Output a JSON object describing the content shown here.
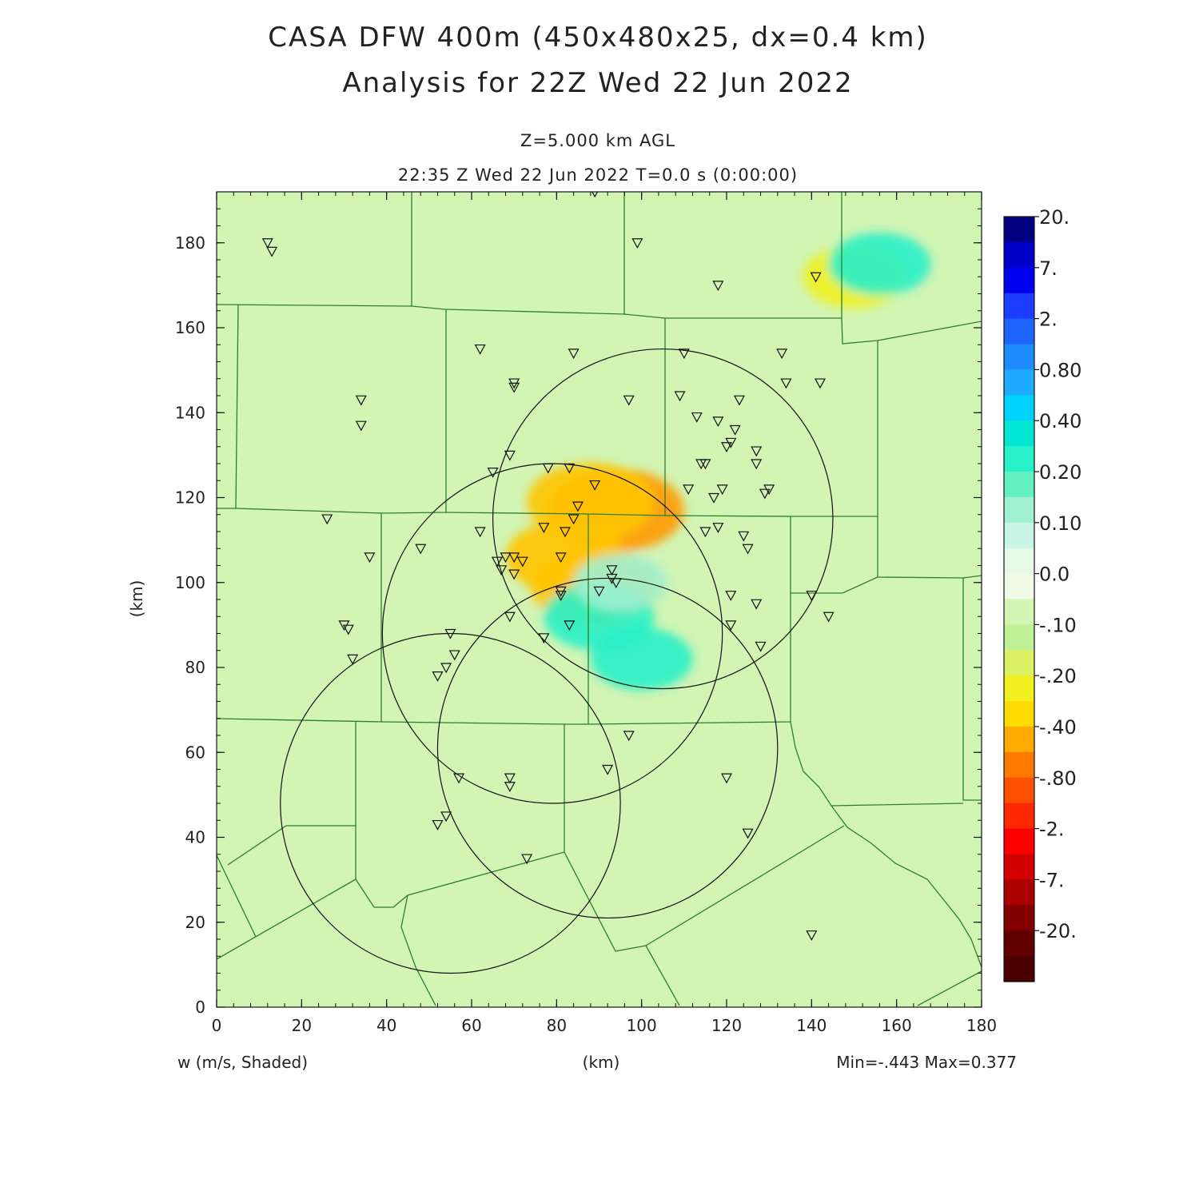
{
  "title_line1": "CASA DFW 400m (450x480x25, dx=0.4 km)",
  "title_line2": "Analysis for 22Z Wed 22 Jun 2022",
  "subtitle_line1": "Z=5.000 km AGL",
  "subtitle_line2": "22:35 Z Wed 22 Jun 2022    T=0.0 s (0:00:00)",
  "footer_left": "w (m/s, Shaded)",
  "footer_center": "(km)",
  "footer_right": "Min=-.443 Max=0.377",
  "colorbar_labels": [
    "20.",
    "7.",
    "2.",
    "0.80",
    "0.40",
    "0.20",
    "0.10",
    "0.0",
    "-.10",
    "-.20",
    "-.40",
    "-.80",
    "-2.",
    "-7.",
    "-20."
  ],
  "colorbar_colors": [
    "#000080",
    "#0000c8",
    "#0000f0",
    "#1c3cff",
    "#1e64ff",
    "#1e8cff",
    "#1eaaff",
    "#00d2ff",
    "#00e6d2",
    "#28f0c8",
    "#64f0c0",
    "#a0f0d2",
    "#c8f5e6",
    "#e6fae6",
    "#f0fae6",
    "#d2f5b4",
    "#bef096",
    "#dcf064",
    "#f0f01e",
    "#ffdc00",
    "#ffaa00",
    "#ff7800",
    "#ff5000",
    "#ff2800",
    "#ff0000",
    "#d20000",
    "#aa0000",
    "#820000",
    "#600000",
    "#4a0000"
  ],
  "background_color": "#d2f5b4",
  "chart_data": {
    "type": "heatmap",
    "variable": "w (m/s, Shaded)",
    "level": "Z=5.000 km AGL",
    "xlim": [
      0,
      180
    ],
    "ylim": [
      0,
      192
    ],
    "x_ticks": [
      0,
      20,
      40,
      60,
      80,
      100,
      120,
      140,
      160,
      180
    ],
    "y_ticks": [
      0,
      20,
      40,
      60,
      80,
      100,
      120,
      140,
      160,
      180
    ],
    "xlabel": "(km)",
    "ylabel": "(km)",
    "min": -0.443,
    "max": 0.377,
    "radar_rings": [
      {
        "cx": 105,
        "cy": 115,
        "r": 40
      },
      {
        "cx": 79,
        "cy": 88,
        "r": 40
      },
      {
        "cx": 92,
        "cy": 61,
        "r": 40
      },
      {
        "cx": 55,
        "cy": 48,
        "r": 40
      }
    ],
    "features": [
      {
        "type": "updraft",
        "x": 94,
        "y": 117,
        "value": -0.4
      },
      {
        "type": "updraft",
        "x": 88,
        "y": 119,
        "value": -0.35
      },
      {
        "type": "updraft",
        "x": 82,
        "y": 106,
        "value": -0.3
      },
      {
        "type": "updraft",
        "x": 89,
        "y": 99,
        "value": -0.35
      },
      {
        "type": "updraft",
        "x": 150,
        "y": 172,
        "value": -0.2
      },
      {
        "type": "downdraft",
        "x": 156,
        "y": 175,
        "value": 0.2
      },
      {
        "type": "downdraft",
        "x": 90,
        "y": 92,
        "value": 0.25
      },
      {
        "type": "downdraft",
        "x": 100,
        "y": 82,
        "value": 0.2
      },
      {
        "type": "downdraft",
        "x": 95,
        "y": 100,
        "value": 0.15
      }
    ],
    "stations": [
      [
        12,
        180
      ],
      [
        13,
        178
      ],
      [
        99,
        180
      ],
      [
        141,
        172
      ],
      [
        118,
        170
      ],
      [
        62,
        155
      ],
      [
        84,
        154
      ],
      [
        110,
        154
      ],
      [
        133,
        154
      ],
      [
        70,
        147
      ],
      [
        70,
        146
      ],
      [
        134,
        147
      ],
      [
        142,
        147
      ],
      [
        34,
        143
      ],
      [
        97,
        143
      ],
      [
        109,
        144
      ],
      [
        123,
        143
      ],
      [
        34,
        137
      ],
      [
        113,
        139
      ],
      [
        118,
        138
      ],
      [
        122,
        136
      ],
      [
        121,
        133
      ],
      [
        120,
        132
      ],
      [
        127,
        131
      ],
      [
        127,
        128
      ],
      [
        69,
        130
      ],
      [
        65,
        126
      ],
      [
        78,
        127
      ],
      [
        83,
        127
      ],
      [
        114,
        128
      ],
      [
        115,
        128
      ],
      [
        89,
        123
      ],
      [
        111,
        122
      ],
      [
        119,
        122
      ],
      [
        130,
        122
      ],
      [
        129,
        121
      ],
      [
        117,
        120
      ],
      [
        85,
        118
      ],
      [
        84,
        115
      ],
      [
        26,
        115
      ],
      [
        62,
        112
      ],
      [
        77,
        113
      ],
      [
        82,
        112
      ],
      [
        118,
        113
      ],
      [
        115,
        112
      ],
      [
        124,
        111
      ],
      [
        125,
        108
      ],
      [
        48,
        108
      ],
      [
        36,
        106
      ],
      [
        68,
        106
      ],
      [
        70,
        106
      ],
      [
        72,
        105
      ],
      [
        81,
        106
      ],
      [
        66,
        105
      ],
      [
        67,
        103
      ],
      [
        70,
        102
      ],
      [
        93,
        103
      ],
      [
        93,
        101
      ],
      [
        94,
        100
      ],
      [
        81,
        98
      ],
      [
        81,
        97
      ],
      [
        90,
        98
      ],
      [
        121,
        97
      ],
      [
        140,
        97
      ],
      [
        127,
        95
      ],
      [
        144,
        92
      ],
      [
        69,
        92
      ],
      [
        30,
        90
      ],
      [
        31,
        89
      ],
      [
        83,
        90
      ],
      [
        121,
        90
      ],
      [
        77,
        87
      ],
      [
        55,
        88
      ],
      [
        56,
        83
      ],
      [
        128,
        85
      ],
      [
        32,
        82
      ],
      [
        54,
        80
      ],
      [
        52,
        78
      ],
      [
        97,
        64
      ],
      [
        92,
        56
      ],
      [
        57,
        54
      ],
      [
        69,
        54
      ],
      [
        69,
        52
      ],
      [
        120,
        54
      ],
      [
        54,
        45
      ],
      [
        52,
        43
      ],
      [
        125,
        41
      ],
      [
        73,
        35
      ],
      [
        140,
        17
      ],
      [
        89,
        192
      ]
    ]
  }
}
